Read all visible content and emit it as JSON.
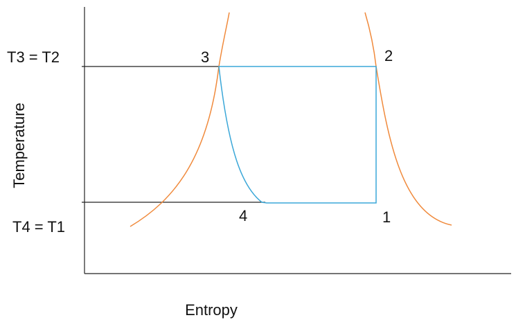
{
  "axes": {
    "y_label": "Temperature",
    "x_label": "Entropy"
  },
  "levels": {
    "high": "T3 = T2",
    "low": "T4 = T1"
  },
  "points": [
    {
      "label": "1"
    },
    {
      "label": "2"
    },
    {
      "label": "3"
    },
    {
      "label": "4"
    }
  ]
}
